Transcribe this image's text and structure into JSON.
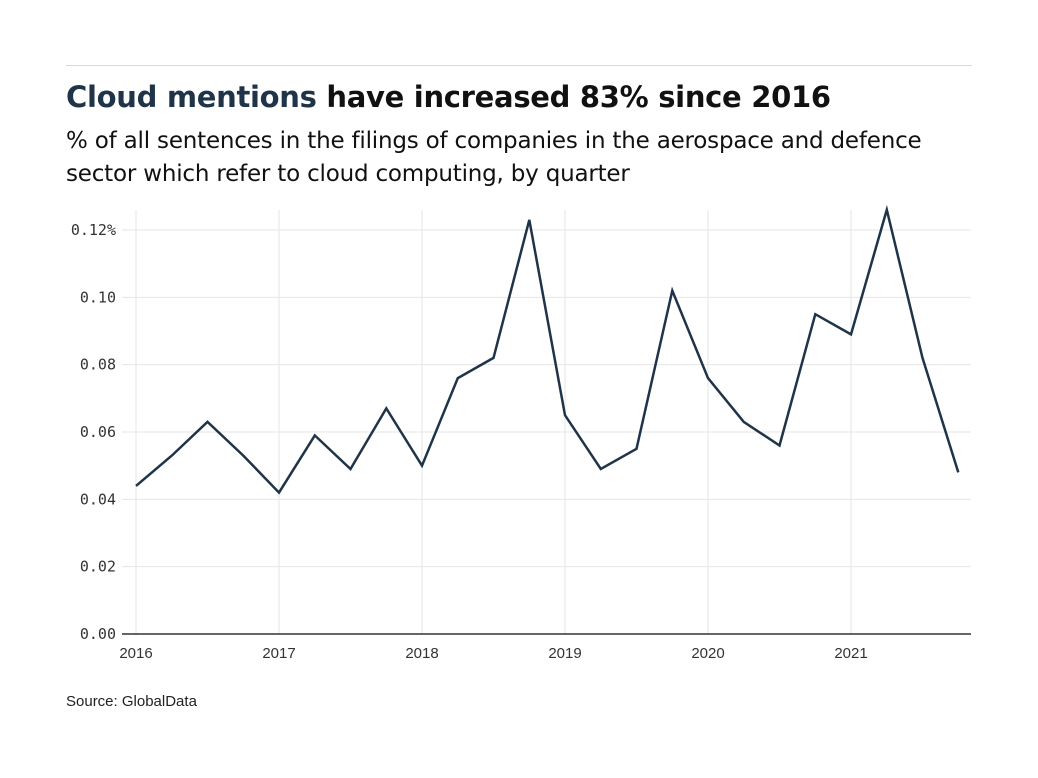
{
  "header": {
    "title_highlight": "Cloud mentions",
    "title_rest": " have increased 83% since 2016",
    "subtitle": "% of all sentences in the filings of companies in the aerospace and defence sector which refer to cloud computing, by quarter"
  },
  "footer": {
    "source": "Source: GlobalData"
  },
  "colors": {
    "line": "#1f3449",
    "grid": "#e6e6e6",
    "axis": "#333333",
    "highlight": "#1f3449"
  },
  "chart_data": {
    "type": "line",
    "title": "Cloud mentions have increased 83% since 2016",
    "subtitle": "% of all sentences in the filings of companies in the aerospace and defence sector which refer to cloud computing, by quarter",
    "xlabel": "",
    "ylabel": "",
    "xlim": [
      2016,
      2021.75
    ],
    "ylim": [
      0,
      0.126
    ],
    "grid": true,
    "legend": "none",
    "x_ticks": [
      2016,
      2017,
      2018,
      2019,
      2020,
      2021
    ],
    "x_tick_labels": [
      "2016",
      "2017",
      "2018",
      "2019",
      "2020",
      "2021"
    ],
    "y_ticks": [
      0,
      0.02,
      0.04,
      0.06,
      0.08,
      0.1,
      0.12
    ],
    "y_tick_labels": [
      "0.00",
      "0.02",
      "0.04",
      "0.06",
      "0.08",
      "0.10",
      "0.12%"
    ],
    "series": [
      {
        "name": "Cloud mentions",
        "x": [
          2016,
          2016.25,
          2016.5,
          2016.75,
          2017,
          2017.25,
          2017.5,
          2017.75,
          2018,
          2018.25,
          2018.5,
          2018.75,
          2019,
          2019.25,
          2019.5,
          2019.75,
          2020,
          2020.25,
          2020.5,
          2020.75,
          2021,
          2021.25,
          2021.5,
          2021.75
        ],
        "values": [
          0.044,
          0.053,
          0.063,
          0.053,
          0.042,
          0.059,
          0.049,
          0.067,
          0.05,
          0.076,
          0.082,
          0.123,
          0.065,
          0.049,
          0.055,
          0.102,
          0.076,
          0.063,
          0.056,
          0.095,
          0.089,
          0.126,
          0.082,
          0.048
        ]
      }
    ],
    "source": "Source: GlobalData"
  }
}
